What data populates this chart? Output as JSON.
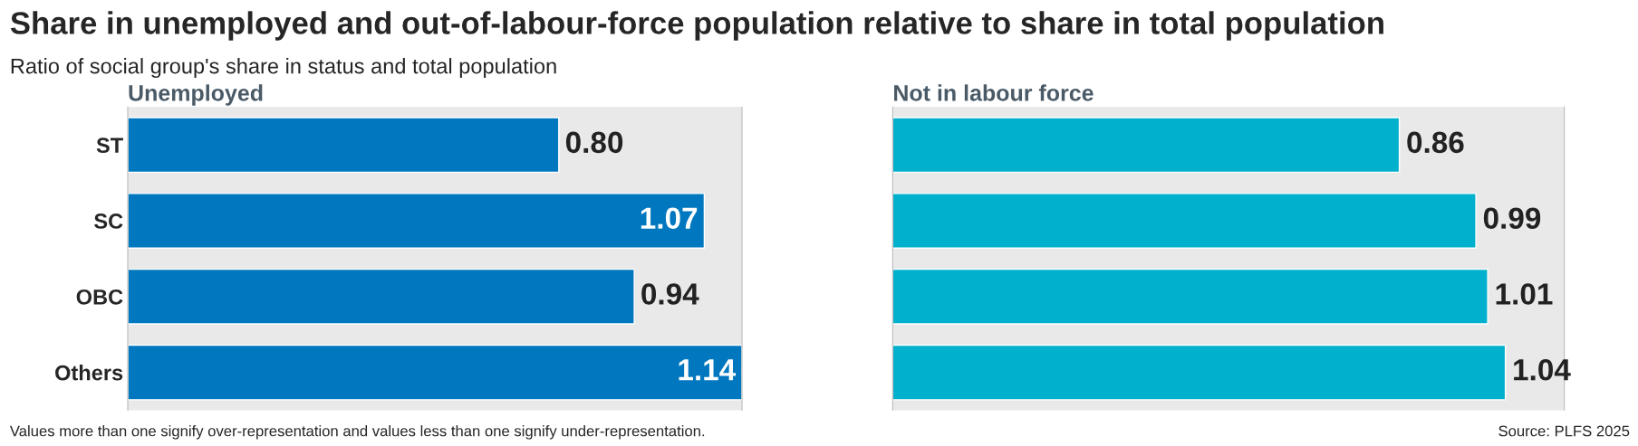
{
  "chart_data": [
    {
      "type": "bar",
      "orientation": "horizontal",
      "title": "Unemployed",
      "categories": [
        "ST",
        "SC",
        "OBC",
        "Others"
      ],
      "values": [
        0.8,
        1.07,
        0.94,
        1.14
      ],
      "value_labels": [
        "0.80",
        "1.07",
        "0.94",
        "1.14"
      ],
      "color": "#0077be",
      "xlim": [
        0,
        1.14
      ],
      "tick_labels": "y",
      "grid": false,
      "legend": false
    },
    {
      "type": "bar",
      "orientation": "horizontal",
      "title": "Not in labour force",
      "categories": [
        null,
        null,
        null,
        null
      ],
      "values": [
        0.86,
        0.99,
        1.01,
        1.04
      ],
      "value_labels": [
        "0.86",
        "0.99",
        "1.01",
        "1.04"
      ],
      "color": "#00b0cc",
      "xlim": [
        0,
        1.14
      ],
      "tick_labels": false,
      "grid": false,
      "legend": false,
      "annotations": [
        "Source: PLFS 2025"
      ]
    },
    {
      "type": "other",
      "title": "Share in unemployed and out-of-labour-force population relative to share in total population",
      "subtitle": "Ratio of social group's share in status and total population",
      "annotations": [
        "Values more than one signify over-representation and values less than one signify under-representation."
      ]
    }
  ]
}
